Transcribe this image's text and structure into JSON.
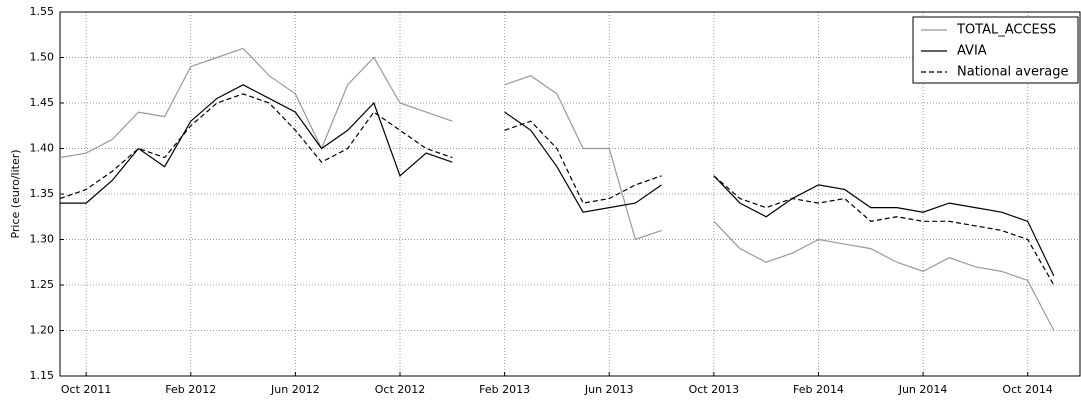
{
  "chart_data": {
    "type": "line",
    "ylabel": "Price (euro/liter)",
    "x": [
      "2011-09",
      "2011-10",
      "2011-11",
      "2011-12",
      "2012-01",
      "2012-02",
      "2012-03",
      "2012-04",
      "2012-05",
      "2012-06",
      "2012-07",
      "2012-08",
      "2012-09",
      "2012-10",
      "2012-11",
      "2012-12",
      "2013-01",
      "2013-02",
      "2013-03",
      "2013-04",
      "2013-05",
      "2013-06",
      "2013-07",
      "2013-08",
      "2013-09",
      "2013-10",
      "2013-11",
      "2013-12",
      "2014-01",
      "2014-02",
      "2014-03",
      "2014-04",
      "2014-05",
      "2014-06",
      "2014-07",
      "2014-08",
      "2014-09",
      "2014-10",
      "2014-11"
    ],
    "series": [
      {
        "name": "TOTAL_ACCESS",
        "color": "#999999",
        "linestyle": "solid",
        "values": [
          1.39,
          1.395,
          1.41,
          1.44,
          1.435,
          1.49,
          1.5,
          1.51,
          1.48,
          1.46,
          1.4,
          1.47,
          1.5,
          1.45,
          1.44,
          1.43,
          null,
          1.47,
          1.48,
          1.46,
          1.4,
          1.4,
          1.3,
          1.31,
          null,
          1.32,
          1.29,
          1.275,
          1.285,
          1.3,
          1.295,
          1.29,
          1.275,
          1.265,
          1.28,
          1.27,
          1.265,
          1.255,
          1.2
        ]
      },
      {
        "name": "AVIA",
        "color": "#000000",
        "linestyle": "solid",
        "values": [
          1.34,
          1.34,
          1.365,
          1.4,
          1.38,
          1.43,
          1.455,
          1.47,
          1.455,
          1.44,
          1.4,
          1.42,
          1.45,
          1.37,
          1.395,
          1.385,
          null,
          1.44,
          1.42,
          1.38,
          1.33,
          1.335,
          1.34,
          1.36,
          null,
          1.37,
          1.34,
          1.325,
          1.345,
          1.36,
          1.355,
          1.335,
          1.335,
          1.33,
          1.34,
          1.335,
          1.33,
          1.32,
          1.26
        ]
      },
      {
        "name": "National average",
        "color": "#000000",
        "linestyle": "dashed",
        "values": [
          1.345,
          1.355,
          1.375,
          1.4,
          1.39,
          1.425,
          1.45,
          1.46,
          1.45,
          1.42,
          1.385,
          1.4,
          1.44,
          1.42,
          1.4,
          1.39,
          null,
          1.42,
          1.43,
          1.4,
          1.34,
          1.345,
          1.36,
          1.37,
          null,
          1.37,
          1.345,
          1.335,
          1.345,
          1.34,
          1.345,
          1.32,
          1.325,
          1.32,
          1.32,
          1.315,
          1.31,
          1.3,
          1.25
        ]
      }
    ],
    "xlim": [
      "2011-09",
      "2014-12"
    ],
    "xticks": [
      {
        "value": "2011-10",
        "label": "Oct 2011"
      },
      {
        "value": "2012-02",
        "label": "Feb 2012"
      },
      {
        "value": "2012-06",
        "label": "Jun 2012"
      },
      {
        "value": "2012-10",
        "label": "Oct 2012"
      },
      {
        "value": "2013-02",
        "label": "Feb 2013"
      },
      {
        "value": "2013-06",
        "label": "Jun 2013"
      },
      {
        "value": "2013-10",
        "label": "Oct 2013"
      },
      {
        "value": "2014-02",
        "label": "Feb 2014"
      },
      {
        "value": "2014-06",
        "label": "Jun 2014"
      },
      {
        "value": "2014-10",
        "label": "Oct 2014"
      }
    ],
    "ylim": [
      1.15,
      1.55
    ],
    "yticks": [
      1.15,
      {
        "value": 1.2,
        "label": "1.20"
      },
      1.25,
      {
        "value": 1.3,
        "label": "1.30"
      },
      1.35,
      {
        "value": 1.4,
        "label": "1.40"
      },
      1.45,
      {
        "value": 1.5,
        "label": "1.50"
      },
      1.55
    ],
    "grid": true,
    "legend": "upper right"
  }
}
